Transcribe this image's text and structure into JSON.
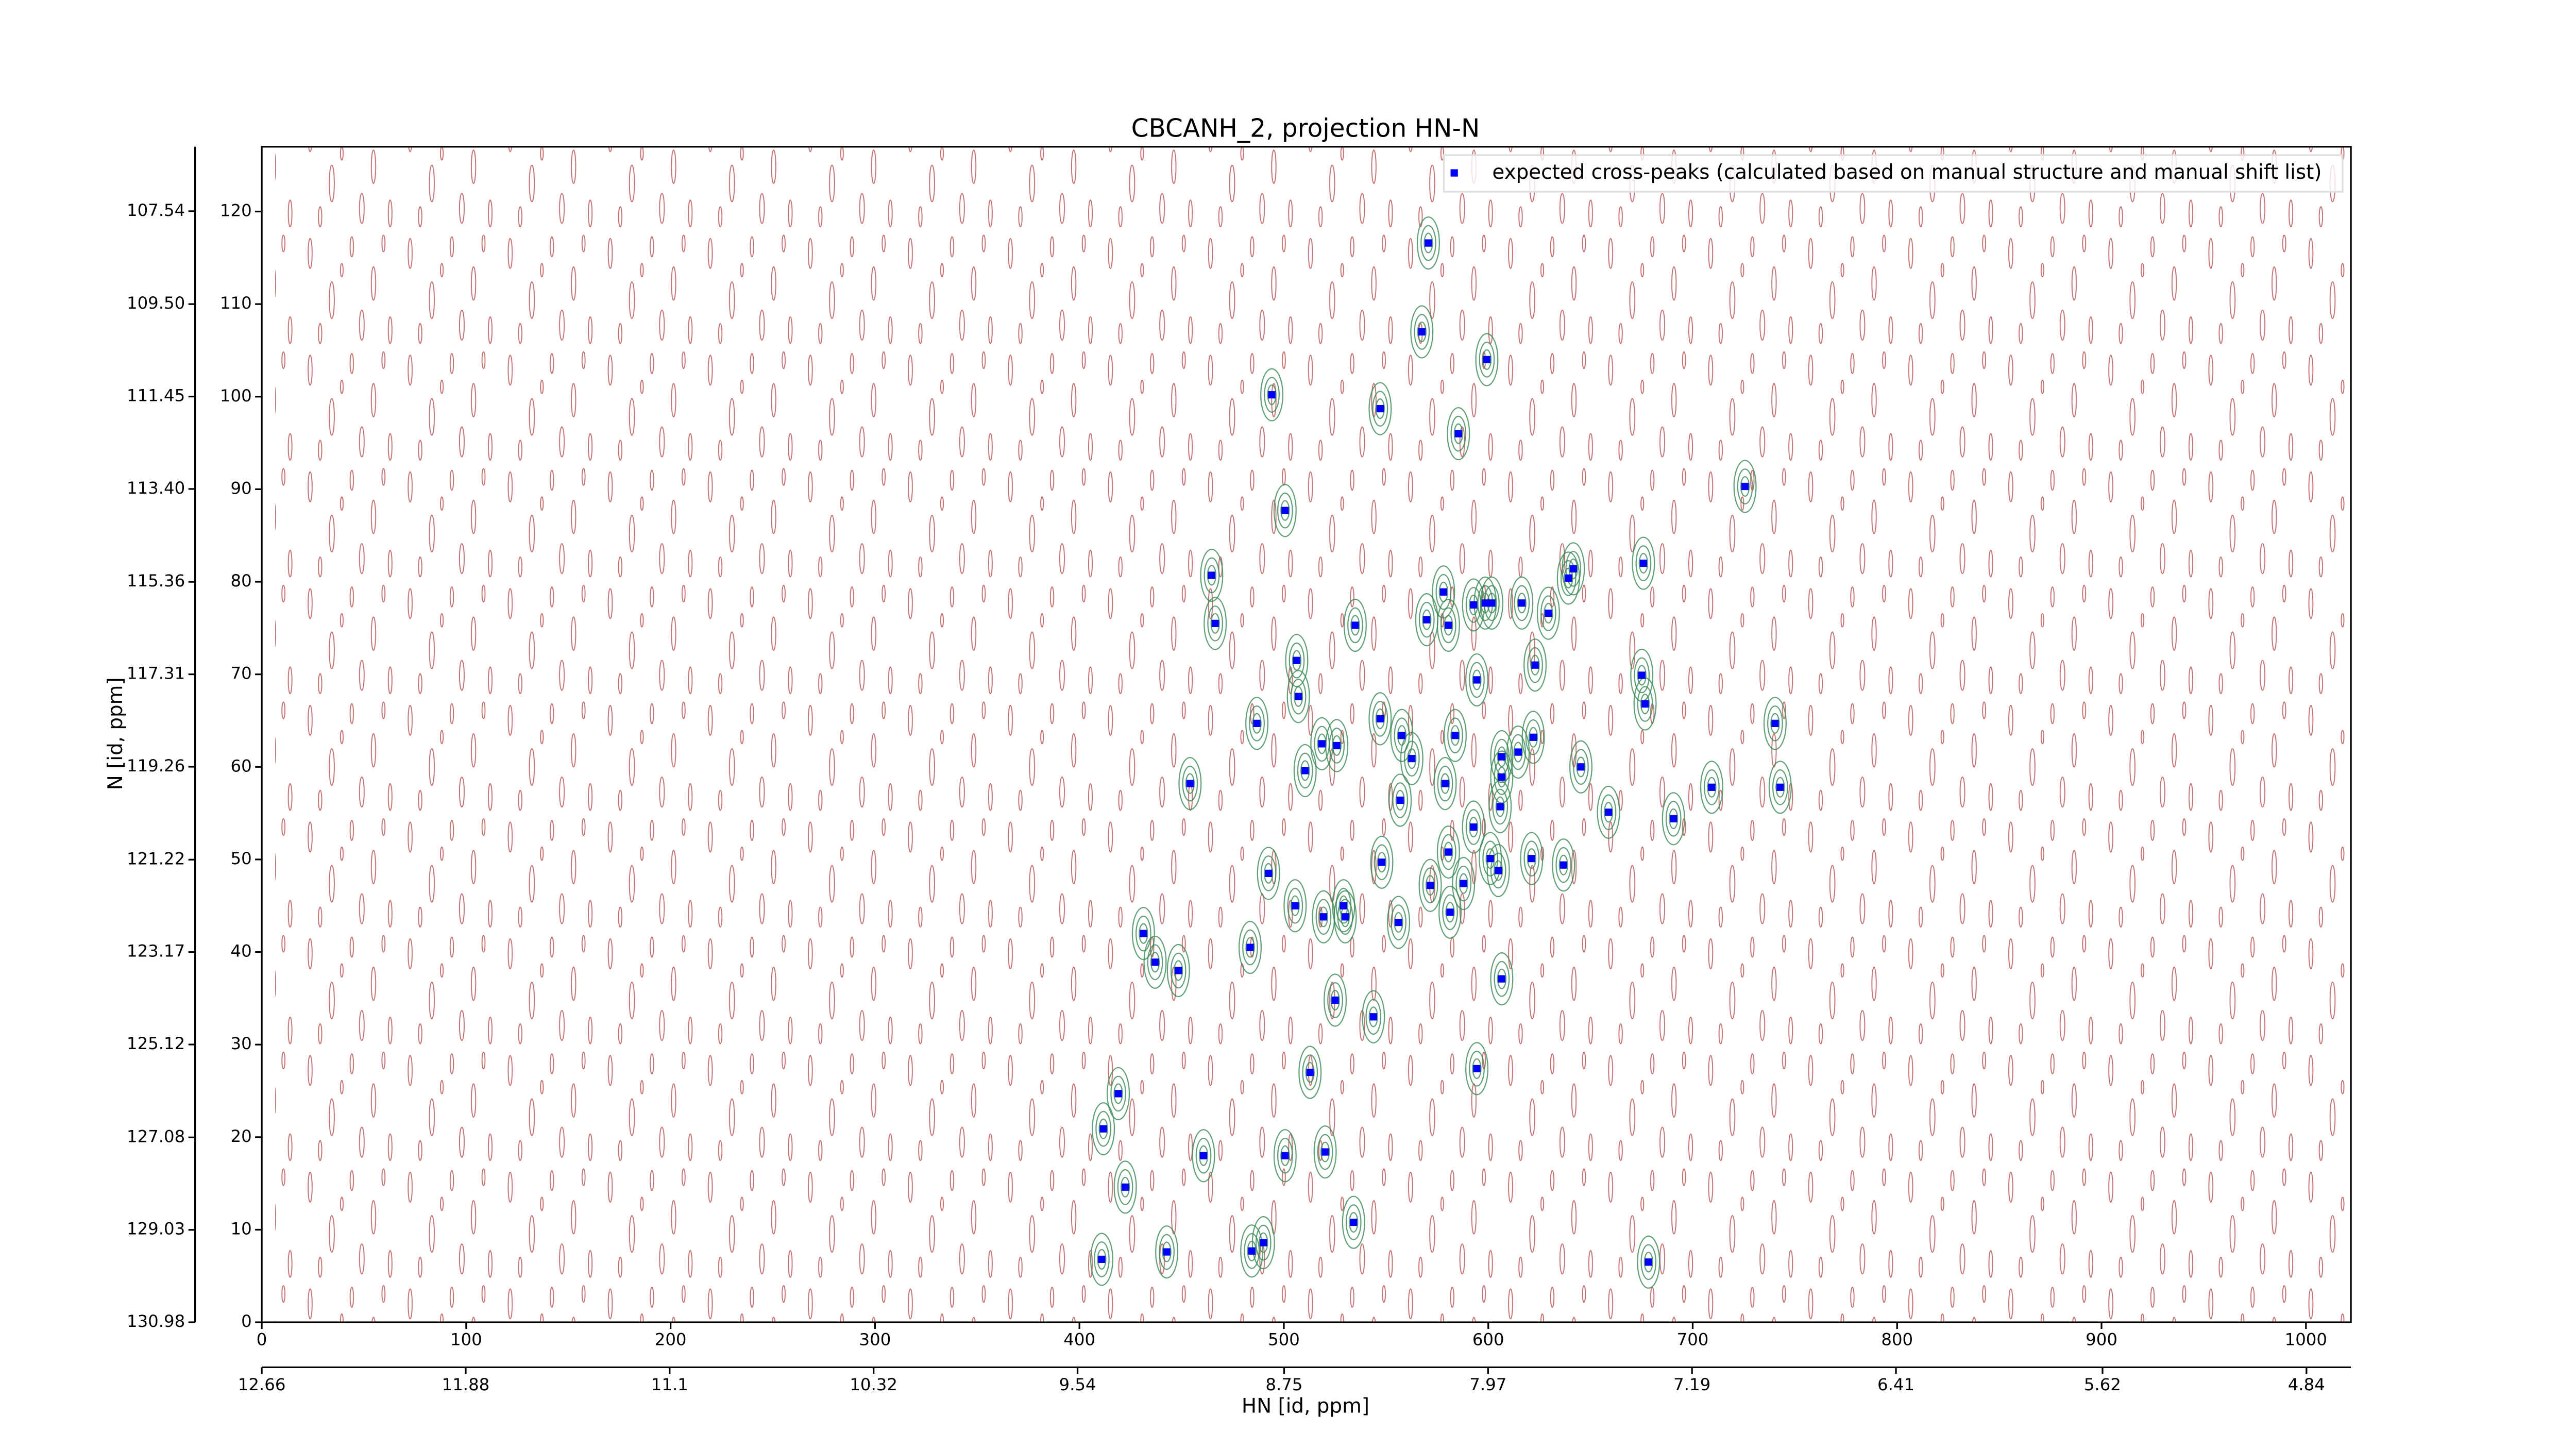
{
  "chart_data": {
    "type": "scatter",
    "title": "CBCANH_2, projection HN-N",
    "xlabel": "HN [id, ppm]",
    "ylabel": "N [id, ppm]",
    "legend": "upper right",
    "xlim": [
      0,
      1022
    ],
    "xticks": [
      0,
      100,
      200,
      300,
      400,
      500,
      600,
      700,
      800,
      900,
      1000
    ],
    "ylim": [
      0,
      127
    ],
    "yticks": [
      0,
      10,
      20,
      30,
      40,
      50,
      60,
      70,
      80,
      90,
      100,
      110,
      120
    ],
    "x2lim": [
      12.66,
      4.67
    ],
    "x2ticks": [
      12.66,
      11.88,
      11.1,
      10.32,
      9.54,
      8.75,
      7.97,
      7.19,
      6.41,
      5.62,
      4.84
    ],
    "y2lim": [
      130.98,
      106.18
    ],
    "y2ticks": [
      130.98,
      129.03,
      127.08,
      125.12,
      123.17,
      121.22,
      119.26,
      117.31,
      115.36,
      {
        "value": 113.4,
        "label": "113.40"
      },
      111.45,
      {
        "value": 109.5,
        "label": "109.50"
      },
      107.54
    ],
    "series": [
      {
        "name": "expected cross-peaks (calculated based on manual structure and manual shift list)",
        "color": "#0000ff",
        "x": [
          570.7,
          567.5,
          599.3,
          494.1,
          547.1,
          585.4,
          725.6,
          500.6,
          675.9,
          464.7,
          641.6,
          639.2,
          578.1,
          592.8,
          598.5,
          601.7,
          616.4,
          629.4,
          569.9,
          580.5,
          466.4,
          534.9,
          506.3,
          622.9,
          594.4,
          675.1,
          507.1,
          676.7,
          547.1,
          740.3,
          486.8,
          583.8,
          557.7,
          622.0,
          518.6,
          525.9,
          614.6,
          606.6,
          562.6,
          510.4,
          645.3,
          606.6,
          454.1,
          709.3,
          742.8,
          578.9,
          556.9,
          658.8,
          605.8,
          690.6,
          592.8,
          580.5,
          601.0,
          547.9,
          636.8,
          621.2,
          604.9,
          492.5,
          571.6,
          587.9,
          505.5,
          529.2,
          519.4,
          530.0,
          556.1,
          581.3,
          431.3,
          437.0,
          483.5,
          448.4,
          606.6,
          525.1,
          543.8,
          594.4,
          512.8,
          419.0,
          411.7,
          460.7,
          500.6,
          520.2,
          422.4,
          534.1,
          490.0,
          484.3,
          442.7,
          410.9,
          678.4
        ],
        "values": [
          116.6,
          107.0,
          104.0,
          100.2,
          98.7,
          96.0,
          90.3,
          87.7,
          82.0,
          80.7,
          81.4,
          80.4,
          78.9,
          77.5,
          77.7,
          77.7,
          77.7,
          76.6,
          75.9,
          75.3,
          75.5,
          75.3,
          71.5,
          71.0,
          69.4,
          69.9,
          67.6,
          66.8,
          65.2,
          64.7,
          64.7,
          63.4,
          63.4,
          63.2,
          62.5,
          62.3,
          61.6,
          61.1,
          60.9,
          59.6,
          60.0,
          58.9,
          58.2,
          57.8,
          57.8,
          58.2,
          56.4,
          55.1,
          55.7,
          54.4,
          53.5,
          50.8,
          50.1,
          49.7,
          49.4,
          50.1,
          48.8,
          48.5,
          47.2,
          47.4,
          45.0,
          45.0,
          43.8,
          43.8,
          43.2,
          44.3,
          42.0,
          38.9,
          40.5,
          38.0,
          37.1,
          34.8,
          33.0,
          27.4,
          27.0,
          24.7,
          20.9,
          18.0,
          18.0,
          18.4,
          14.6,
          10.8,
          8.6,
          7.7,
          7.6,
          6.8,
          6.5
        ]
      }
    ]
  }
}
